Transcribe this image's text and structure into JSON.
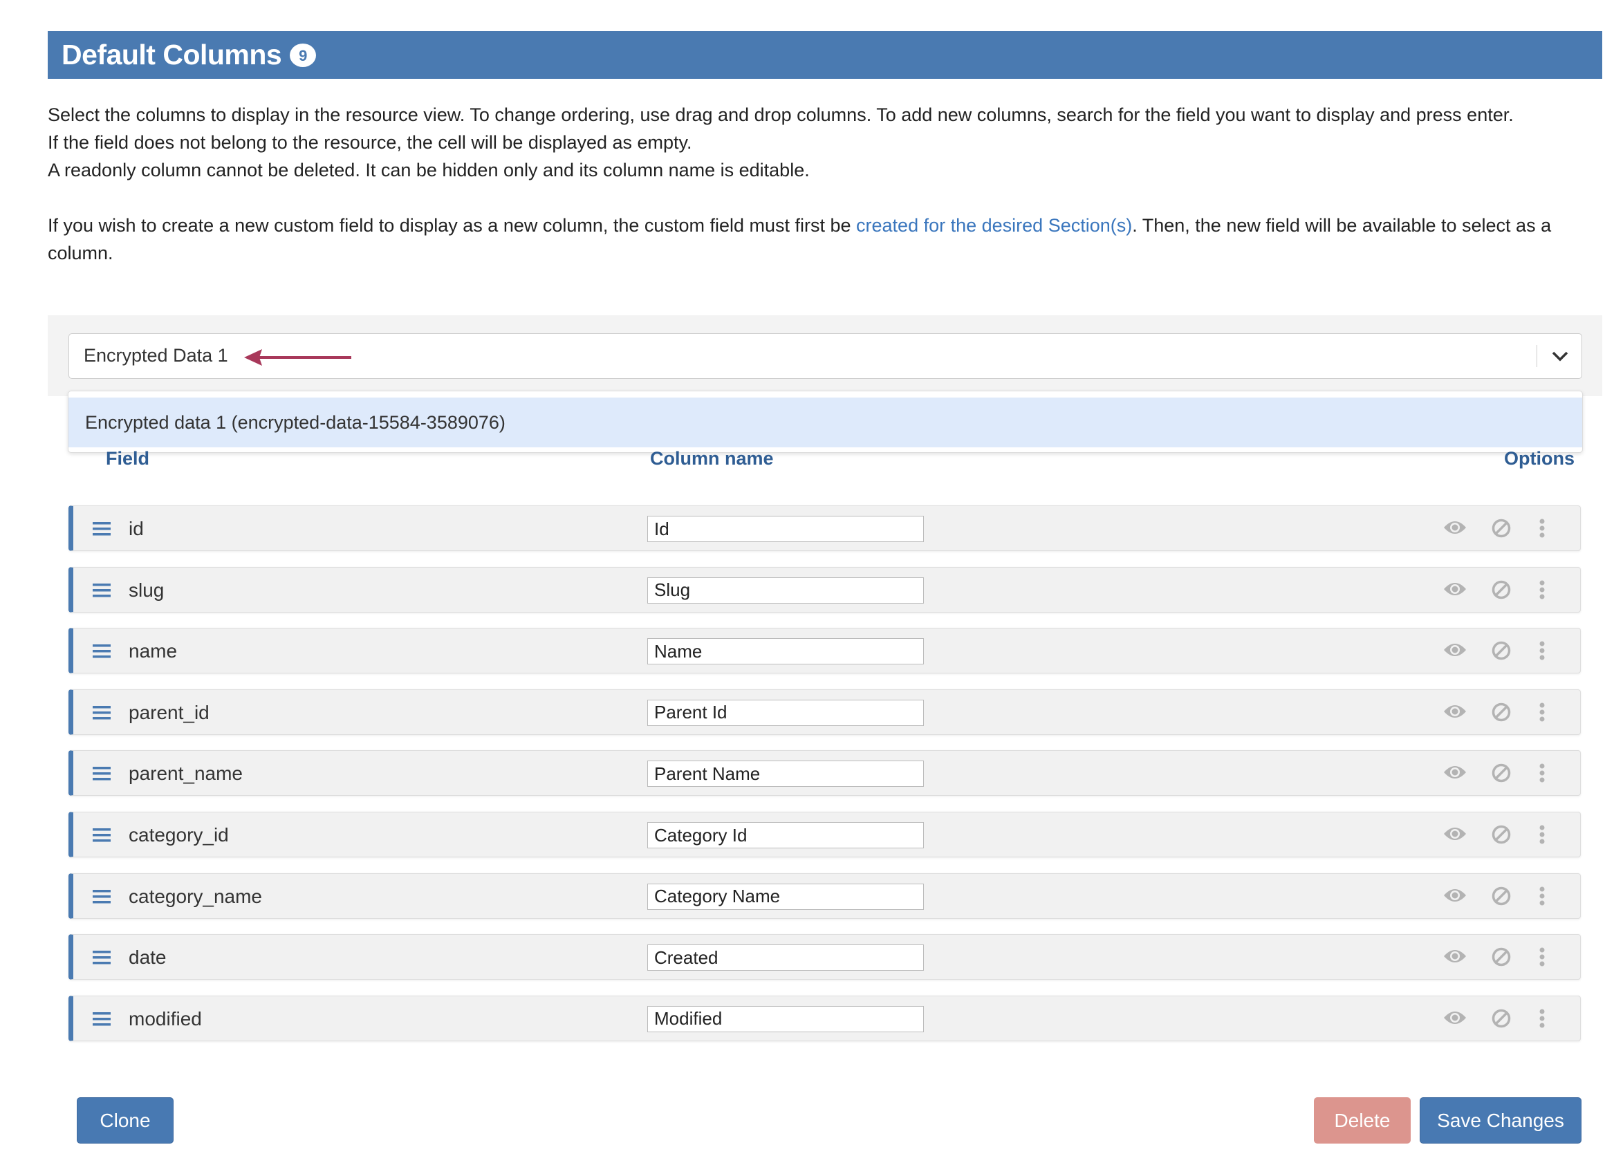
{
  "header": {
    "title": "Default Columns",
    "count": "9",
    "color": "#4a7ab1"
  },
  "description": {
    "line1": "Select the columns to display in the resource view. To change ordering, use drag and drop columns. To add new columns, search for the field you want to display and press enter.",
    "line2": "If the field does not belong to the resource, the cell will be displayed as empty.",
    "line3": "A readonly column cannot be deleted. It can be hidden only and its column name is editable.",
    "para2_before": "If you wish to create a new custom field to display as a new column, the custom field must first be ",
    "para2_link": "created for the desired Section(s)",
    "para2_after": ". Then, the new field will be available to select as a column."
  },
  "search": {
    "value": "Encrypted Data 1",
    "option": "Encrypted data 1 (encrypted-data-15584-3589076)"
  },
  "columns_header": {
    "field": "Field",
    "column_name": "Column name",
    "options": "Options"
  },
  "rows": [
    {
      "field": "id",
      "column_name": "Id"
    },
    {
      "field": "slug",
      "column_name": "Slug"
    },
    {
      "field": "name",
      "column_name": "Name"
    },
    {
      "field": "parent_id",
      "column_name": "Parent Id"
    },
    {
      "field": "parent_name",
      "column_name": "Parent Name"
    },
    {
      "field": "category_id",
      "column_name": "Category Id"
    },
    {
      "field": "category_name",
      "column_name": "Category Name"
    },
    {
      "field": "date",
      "column_name": "Created"
    },
    {
      "field": "modified",
      "column_name": "Modified"
    }
  ],
  "buttons": {
    "clone": "Clone",
    "delete": "Delete",
    "save": "Save Changes"
  }
}
